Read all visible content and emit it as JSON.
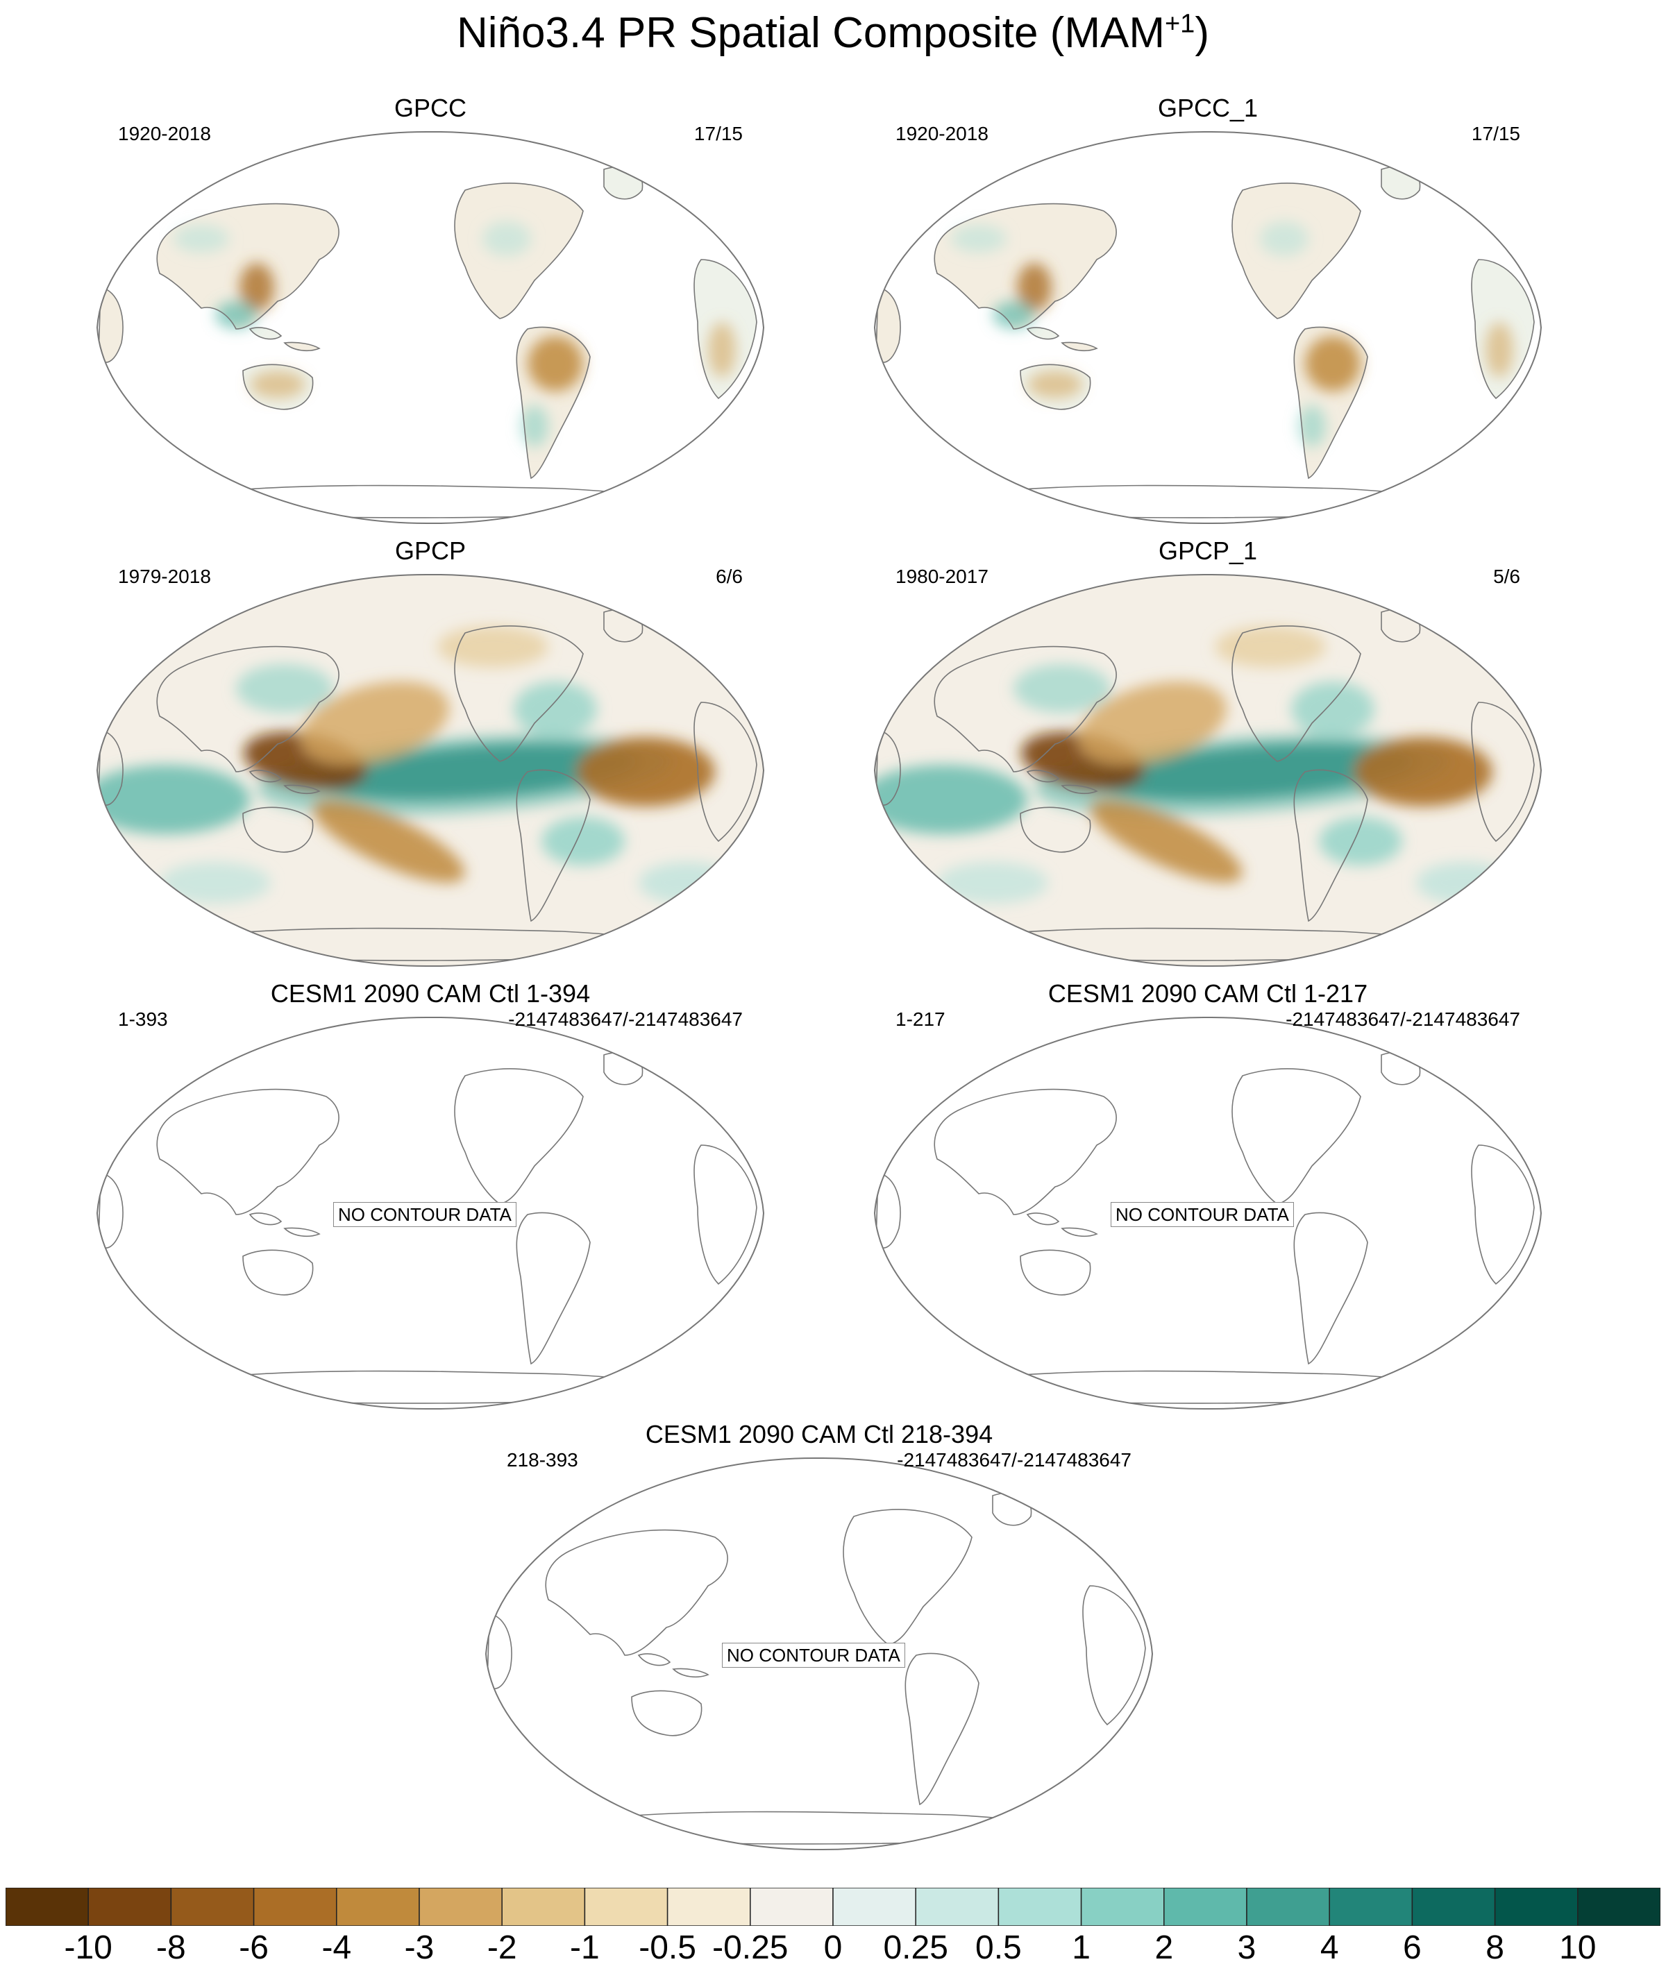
{
  "title": "Niño3.4 PR Spatial Composite (MAM",
  "title_sup": "+1",
  "title_close": ")",
  "panels": [
    {
      "id": "gpcc",
      "title": "GPCC",
      "left": "1920-2018",
      "right": "17/15",
      "pattern": "land",
      "nodata": ""
    },
    {
      "id": "gpcc1",
      "title": "GPCC_1",
      "left": "1920-2018",
      "right": "17/15",
      "pattern": "land",
      "nodata": ""
    },
    {
      "id": "gpcp",
      "title": "GPCP",
      "left": "1979-2018",
      "right": "6/6",
      "pattern": "full",
      "nodata": ""
    },
    {
      "id": "gpcp1",
      "title": "GPCP_1",
      "left": "1980-2017",
      "right": "5/6",
      "pattern": "full",
      "nodata": ""
    },
    {
      "id": "cesm-a",
      "title": "CESM1 2090 CAM Ctl 1-394",
      "left": "1-393",
      "right": "-2147483647/-2147483647",
      "pattern": "empty",
      "nodata": "NO CONTOUR DATA"
    },
    {
      "id": "cesm-b",
      "title": "CESM1 2090 CAM Ctl 1-217",
      "left": "1-217",
      "right": "-2147483647/-2147483647",
      "pattern": "empty",
      "nodata": "NO CONTOUR DATA"
    },
    {
      "id": "cesm-c",
      "title": "CESM1 2090 CAM Ctl 218-394",
      "left": "218-393",
      "right": "-2147483647/-2147483647",
      "pattern": "empty",
      "nodata": "NO CONTOUR DATA"
    }
  ],
  "colorbar": {
    "colors": [
      "#5a3307",
      "#7a4410",
      "#955a1b",
      "#ab6e26",
      "#c08a3c",
      "#d4a660",
      "#e3c488",
      "#efdbb0",
      "#f5ebd5",
      "#f3f0ea",
      "#e4f0ee",
      "#cbe9e4",
      "#ade0d8",
      "#88d0c4",
      "#5fb9ab",
      "#3f9f91",
      "#228579",
      "#0d6a5f",
      "#03564b",
      "#043f35"
    ],
    "labels": [
      "-10",
      "-8",
      "-6",
      "-4",
      "-3",
      "-2",
      "-1",
      "-0.5",
      "-0.25",
      "0",
      "0.25",
      "0.5",
      "1",
      "2",
      "3",
      "4",
      "6",
      "8",
      "10"
    ]
  },
  "palette": {
    "brown": "#b07a30",
    "teal": "#2e9e8c",
    "coast": "#777777"
  }
}
